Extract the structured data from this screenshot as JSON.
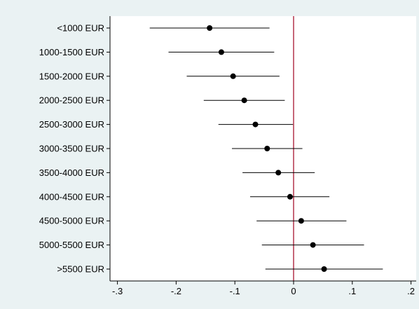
{
  "chart_data": {
    "type": "scatter",
    "subtype": "coefficient-plot",
    "categories": [
      "<1000 EUR",
      "1000-1500 EUR",
      "1500-2000 EUR",
      "2000-2500 EUR",
      "2500-3000 EUR",
      "3000-3500 EUR",
      "3500-4000 EUR",
      "4000-4500 EUR",
      "4500-5000 EUR",
      "5000-5500 EUR",
      ">5500 EUR"
    ],
    "estimates": [
      -0.143,
      -0.123,
      -0.103,
      -0.084,
      -0.065,
      -0.045,
      -0.026,
      -0.006,
      0.013,
      0.033,
      0.052
    ],
    "ci_low": [
      -0.245,
      -0.213,
      -0.182,
      -0.153,
      -0.128,
      -0.105,
      -0.087,
      -0.074,
      -0.063,
      -0.054,
      -0.048
    ],
    "ci_high": [
      -0.041,
      -0.033,
      -0.024,
      -0.015,
      -0.001,
      0.015,
      0.036,
      0.061,
      0.09,
      0.12,
      0.152
    ],
    "x_ticks": [
      -0.3,
      -0.2,
      -0.1,
      0,
      0.1,
      0.2
    ],
    "x_tick_labels": [
      "-.3",
      "-.2",
      "-.1",
      "0",
      ".1",
      ".2"
    ],
    "xlim": [
      -0.32,
      0.21
    ],
    "reference_line": 0,
    "title": "",
    "xlabel": "",
    "ylabel": "",
    "grid": false,
    "legend": "none"
  },
  "colors": {
    "background": "#eaf2f3",
    "plot_area": "#ffffff",
    "reference_line": "#a0001e",
    "marker": "#000000",
    "ci_line": "#000000",
    "axis": "#000000"
  }
}
